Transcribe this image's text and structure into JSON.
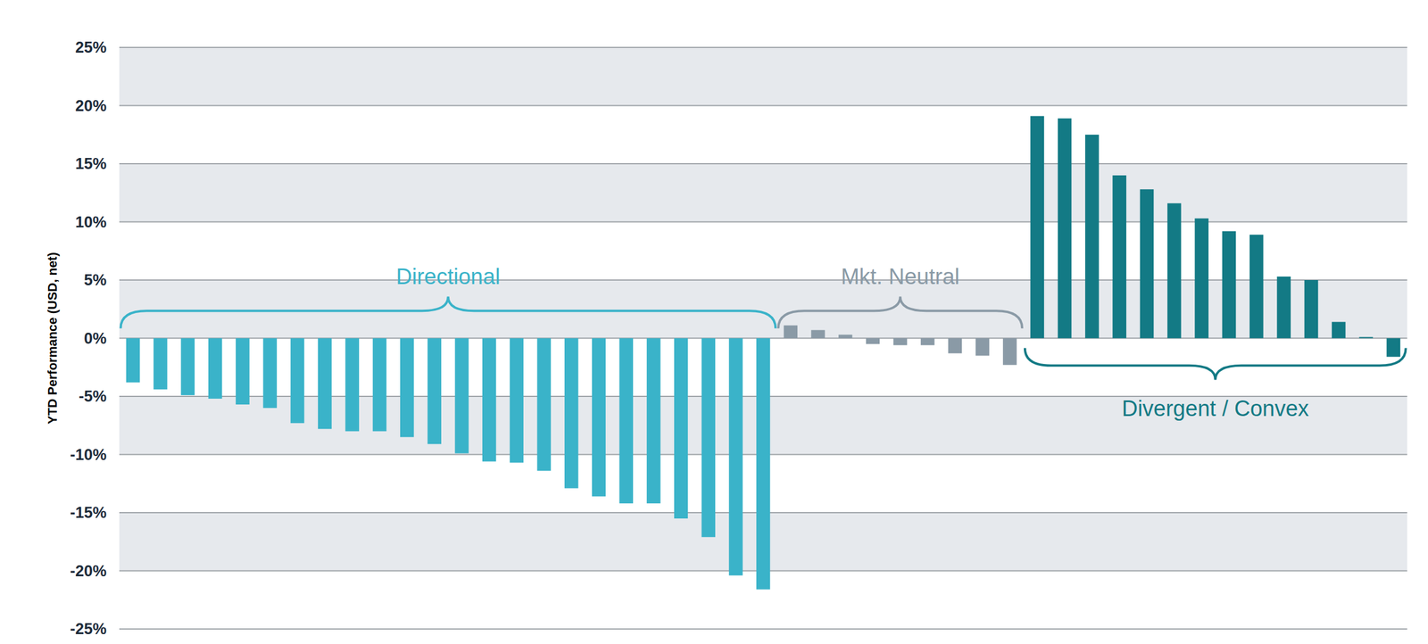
{
  "chart_data": {
    "type": "bar",
    "ylabel": "YTD Performance (USD, net)",
    "categories": [
      null,
      null,
      null,
      null,
      null,
      null,
      null,
      null,
      null,
      null,
      null,
      null,
      null,
      null,
      null,
      null,
      null,
      null,
      null,
      null,
      null,
      null,
      null,
      null,
      null,
      null,
      null,
      null,
      null,
      null,
      null,
      null,
      null,
      null,
      null,
      null,
      null,
      null,
      null,
      null,
      null,
      null,
      null,
      null,
      null,
      null,
      null
    ],
    "series": [
      {
        "name": "Directional",
        "color": "#3ab3c9",
        "values": [
          -3.8,
          -4.4,
          -4.9,
          -5.2,
          -5.7,
          -6.0,
          -7.3,
          -7.8,
          -8.0,
          -8.0,
          -8.5,
          -9.1,
          -9.9,
          -10.6,
          -10.7,
          -11.4,
          -12.9,
          -13.6,
          -14.2,
          -14.2,
          -15.5,
          -17.1,
          -20.4,
          -21.6,
          null,
          null,
          null,
          null,
          null,
          null,
          null,
          null,
          null,
          null,
          null,
          null,
          null,
          null,
          null,
          null,
          null,
          null,
          null,
          null,
          null,
          null,
          null
        ]
      },
      {
        "name": "Mkt. Neutral",
        "color": "#8a9aa6",
        "values": [
          null,
          null,
          null,
          null,
          null,
          null,
          null,
          null,
          null,
          null,
          null,
          null,
          null,
          null,
          null,
          null,
          null,
          null,
          null,
          null,
          null,
          null,
          null,
          null,
          1.1,
          0.7,
          0.3,
          -0.5,
          -0.6,
          -0.6,
          -1.3,
          -1.5,
          -2.3,
          null,
          null,
          null,
          null,
          null,
          null,
          null,
          null,
          null,
          null,
          null,
          null,
          null,
          null
        ]
      },
      {
        "name": "Divergent / Convex",
        "color": "#137a85",
        "values": [
          null,
          null,
          null,
          null,
          null,
          null,
          null,
          null,
          null,
          null,
          null,
          null,
          null,
          null,
          null,
          null,
          null,
          null,
          null,
          null,
          null,
          null,
          null,
          null,
          null,
          null,
          null,
          null,
          null,
          null,
          null,
          null,
          null,
          19.1,
          18.9,
          17.5,
          14.0,
          12.8,
          11.6,
          10.3,
          9.2,
          8.9,
          5.3,
          5.0,
          1.4,
          0.1,
          -1.6
        ]
      }
    ],
    "ylim": [
      -25,
      25
    ],
    "yticks": [
      {
        "value": -25,
        "label": "-25%"
      },
      {
        "value": -20,
        "label": "-20%"
      },
      {
        "value": -15,
        "label": "-15%"
      },
      {
        "value": -10,
        "label": "-10%"
      },
      {
        "value": -5,
        "label": "-5%"
      },
      {
        "value": 0,
        "label": "0%"
      },
      {
        "value": 5,
        "label": "5%"
      },
      {
        "value": 10,
        "label": "10%"
      },
      {
        "value": 15,
        "label": "15%"
      },
      {
        "value": 20,
        "label": "20%"
      },
      {
        "value": 25,
        "label": "25%"
      }
    ],
    "grid": true
  }
}
